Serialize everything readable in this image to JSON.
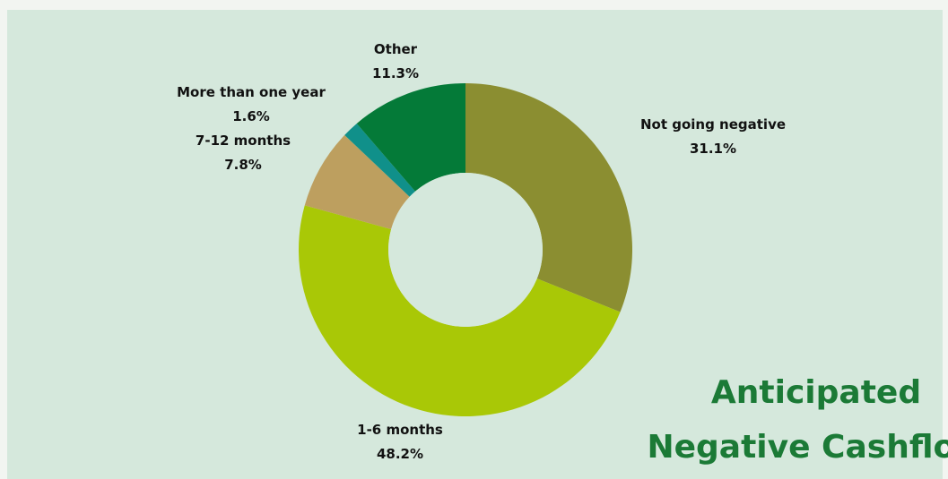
{
  "chart_data": {
    "type": "pie",
    "donut": true,
    "title_lines": [
      "Anticipated",
      "Negative Cashflow"
    ],
    "slices": [
      {
        "label": "Not going negative",
        "value": 31.1,
        "display": "31.1%",
        "color": "#8b8e31"
      },
      {
        "label": "1-6 months",
        "value": 48.2,
        "display": "48.2%",
        "color": "#a9c806"
      },
      {
        "label": "7-12 months",
        "value": 7.8,
        "display": "7.8%",
        "color": "#bd9f5f"
      },
      {
        "label": "More than one year",
        "value": 1.6,
        "display": "1.6%",
        "color": "#10908a"
      },
      {
        "label": "Other",
        "value": 11.3,
        "display": "11.3%",
        "color": "#047a38"
      }
    ],
    "background_color": "#d5e8dc",
    "title_color": "#1b7a36"
  }
}
